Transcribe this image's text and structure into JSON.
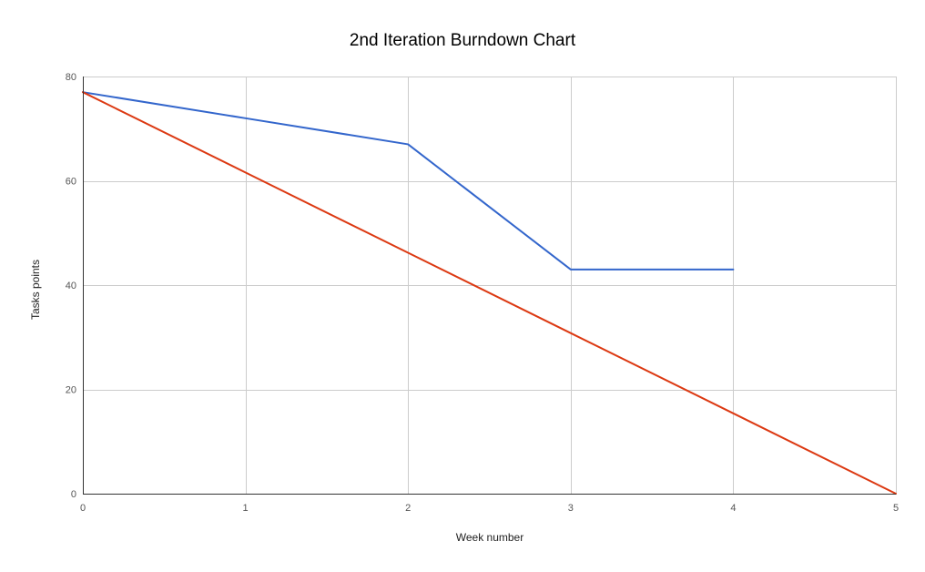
{
  "chart_data": {
    "type": "line",
    "title": "2nd Iteration Burndown Chart",
    "xlabel": "Week number",
    "ylabel": "Tasks points",
    "xlim": [
      0,
      5
    ],
    "ylim": [
      0,
      80
    ],
    "x_ticks": [
      0,
      1,
      2,
      3,
      4,
      5
    ],
    "y_ticks": [
      0,
      20,
      40,
      60,
      80
    ],
    "grid": true,
    "legend": "none",
    "series": [
      {
        "color": "#3366cc",
        "points": [
          [
            0,
            77
          ],
          [
            1,
            72
          ],
          [
            2,
            67
          ],
          [
            3,
            43
          ],
          [
            4,
            43
          ]
        ]
      },
      {
        "color": "#dc3912",
        "points": [
          [
            0,
            77
          ],
          [
            1,
            61.6
          ],
          [
            2,
            46.2
          ],
          [
            3,
            30.8
          ],
          [
            4,
            15.4
          ],
          [
            5,
            0
          ]
        ]
      }
    ]
  }
}
